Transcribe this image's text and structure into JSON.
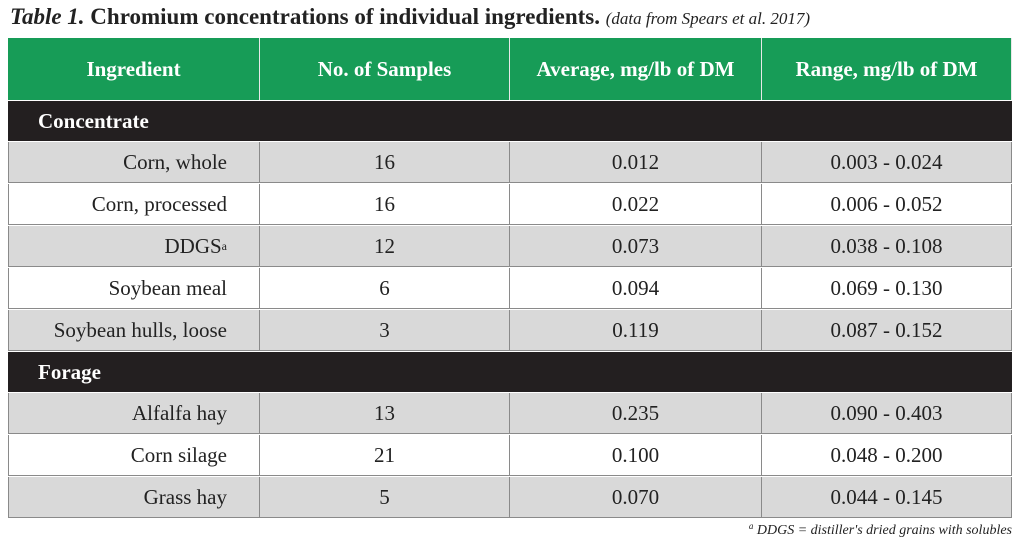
{
  "title": {
    "label": "Table 1.",
    "text": "Chromium concentrations of individual ingredients.",
    "source": "(data from Spears et al. 2017)"
  },
  "table": {
    "columns": [
      "Ingredient",
      "No. of Samples",
      "Average, mg/lb of DM",
      "Range, mg/lb of DM"
    ],
    "sections": [
      {
        "name": "Concentrate",
        "rows": [
          {
            "cells": [
              "Corn, whole",
              "16",
              "0.012",
              "0.003 - 0.024"
            ]
          },
          {
            "cells": [
              "Corn, processed",
              "16",
              "0.022",
              "0.006 - 0.052"
            ]
          },
          {
            "cells": [
              "DDGS",
              "12",
              "0.073",
              "0.038 - 0.108"
            ],
            "note": "a"
          },
          {
            "cells": [
              "Soybean meal",
              "6",
              "0.094",
              "0.069 - 0.130"
            ]
          },
          {
            "cells": [
              "Soybean hulls, loose",
              "3",
              "0.119",
              "0.087 - 0.152"
            ]
          }
        ]
      },
      {
        "name": "Forage",
        "rows": [
          {
            "cells": [
              "Alfalfa hay",
              "13",
              "0.235",
              "0.090 - 0.403"
            ]
          },
          {
            "cells": [
              "Corn silage",
              "21",
              "0.100",
              "0.048 - 0.200"
            ]
          },
          {
            "cells": [
              "Grass hay",
              "5",
              "0.070",
              "0.044 - 0.145"
            ]
          }
        ]
      }
    ]
  },
  "footnote": {
    "marker": "a",
    "text": "DDGS = distiller's dried grains with solubles"
  }
}
